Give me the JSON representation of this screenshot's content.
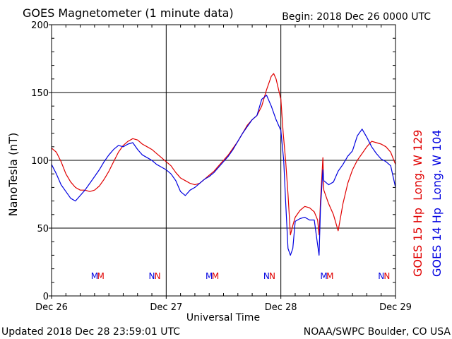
{
  "colors": {
    "red": "#e00000",
    "blue": "#0000e0",
    "axis": "#000000",
    "background": "#ffffff"
  },
  "header": {
    "title": "GOES Magnetometer (1 minute data)",
    "begin": "Begin:  2018 Dec 26 0000 UTC"
  },
  "footer": {
    "updated": "Updated 2018 Dec 28 23:59:01 UTC",
    "credit": "NOAA/SWPC Boulder, CO USA"
  },
  "chart_data": {
    "type": "line",
    "title": "GOES Magnetometer (1 minute data)",
    "xlabel": "Universal Time",
    "ylabel": "NanoTesla (nT)",
    "xlim": [
      0,
      72
    ],
    "x_unit": "hours since 2018 Dec 26 0000 UTC",
    "ylim": [
      0,
      200
    ],
    "yticks": [
      0,
      50,
      100,
      150,
      200
    ],
    "xticks": [
      {
        "value": 0,
        "label": "Dec 26"
      },
      {
        "value": 24,
        "label": "Dec 27"
      },
      {
        "value": 48,
        "label": "Dec 28"
      },
      {
        "value": 72,
        "label": "Dec 29"
      }
    ],
    "grid": true,
    "midnight_lines": [
      24,
      48
    ],
    "series": [
      {
        "name": "GOES 15 Hp  Long. W 129",
        "color": "#e00000",
        "points": [
          [
            0,
            109
          ],
          [
            1,
            106
          ],
          [
            2,
            99
          ],
          [
            3,
            90
          ],
          [
            4,
            84
          ],
          [
            5,
            80
          ],
          [
            6,
            78
          ],
          [
            7,
            78
          ],
          [
            8,
            77
          ],
          [
            9,
            78
          ],
          [
            10,
            81
          ],
          [
            11,
            86
          ],
          [
            12,
            92
          ],
          [
            13,
            99
          ],
          [
            14,
            106
          ],
          [
            15,
            111
          ],
          [
            16,
            114
          ],
          [
            17,
            116
          ],
          [
            18,
            115
          ],
          [
            19,
            112
          ],
          [
            20,
            110
          ],
          [
            21,
            108
          ],
          [
            22,
            105
          ],
          [
            23,
            102
          ],
          [
            24,
            99
          ],
          [
            25,
            96
          ],
          [
            26,
            91
          ],
          [
            27,
            87
          ],
          [
            28,
            85
          ],
          [
            29,
            83
          ],
          [
            30,
            82
          ],
          [
            31,
            83
          ],
          [
            32,
            86
          ],
          [
            33,
            89
          ],
          [
            34,
            92
          ],
          [
            35,
            96
          ],
          [
            36,
            100
          ],
          [
            37,
            104
          ],
          [
            38,
            109
          ],
          [
            39,
            114
          ],
          [
            40,
            120
          ],
          [
            41,
            126
          ],
          [
            42,
            130
          ],
          [
            43,
            133
          ],
          [
            44,
            140
          ],
          [
            45,
            152
          ],
          [
            46,
            162
          ],
          [
            46.5,
            164
          ],
          [
            47,
            160
          ],
          [
            48,
            145
          ],
          [
            48.5,
            120
          ],
          [
            49,
            100
          ],
          [
            49.5,
            75
          ],
          [
            50,
            45
          ],
          [
            50.5,
            52
          ],
          [
            51,
            58
          ],
          [
            52,
            63
          ],
          [
            53,
            66
          ],
          [
            54,
            65
          ],
          [
            55,
            62
          ],
          [
            55.7,
            56
          ],
          [
            56,
            45
          ],
          [
            56.3,
            70
          ],
          [
            56.8,
            102
          ],
          [
            57,
            78
          ],
          [
            58,
            68
          ],
          [
            59,
            60
          ],
          [
            60,
            48
          ],
          [
            61,
            68
          ],
          [
            62,
            83
          ],
          [
            63,
            93
          ],
          [
            64,
            100
          ],
          [
            65,
            105
          ],
          [
            66,
            110
          ],
          [
            67,
            114
          ],
          [
            68,
            113
          ],
          [
            69,
            112
          ],
          [
            70,
            110
          ],
          [
            71,
            106
          ],
          [
            72,
            97
          ]
        ]
      },
      {
        "name": "GOES 14 Hp  Long. W 104",
        "color": "#0000e0",
        "points": [
          [
            0,
            97
          ],
          [
            1,
            90
          ],
          [
            2,
            82
          ],
          [
            3,
            77
          ],
          [
            4,
            72
          ],
          [
            5,
            70
          ],
          [
            6,
            74
          ],
          [
            7,
            78
          ],
          [
            8,
            83
          ],
          [
            9,
            88
          ],
          [
            10,
            93
          ],
          [
            11,
            99
          ],
          [
            12,
            104
          ],
          [
            13,
            108
          ],
          [
            14,
            111
          ],
          [
            15,
            110
          ],
          [
            16,
            112
          ],
          [
            17,
            113
          ],
          [
            18,
            108
          ],
          [
            19,
            104
          ],
          [
            20,
            102
          ],
          [
            21,
            100
          ],
          [
            22,
            97
          ],
          [
            23,
            95
          ],
          [
            24,
            93
          ],
          [
            25,
            90
          ],
          [
            26,
            85
          ],
          [
            27,
            77
          ],
          [
            28,
            74
          ],
          [
            29,
            78
          ],
          [
            30,
            80
          ],
          [
            31,
            83
          ],
          [
            32,
            86
          ],
          [
            33,
            88
          ],
          [
            34,
            91
          ],
          [
            35,
            95
          ],
          [
            36,
            99
          ],
          [
            37,
            103
          ],
          [
            38,
            108
          ],
          [
            39,
            114
          ],
          [
            40,
            120
          ],
          [
            41,
            125
          ],
          [
            42,
            130
          ],
          [
            43,
            133
          ],
          [
            44,
            145
          ],
          [
            45,
            148
          ],
          [
            46,
            140
          ],
          [
            47,
            130
          ],
          [
            48,
            122
          ],
          [
            48.6,
            100
          ],
          [
            49,
            70
          ],
          [
            49.5,
            35
          ],
          [
            50,
            30
          ],
          [
            50.5,
            35
          ],
          [
            51,
            55
          ],
          [
            52,
            57
          ],
          [
            53,
            58
          ],
          [
            54,
            56
          ],
          [
            55,
            56
          ],
          [
            55.6,
            40
          ],
          [
            56,
            30
          ],
          [
            56.3,
            65
          ],
          [
            56.8,
            93
          ],
          [
            57,
            85
          ],
          [
            58,
            82
          ],
          [
            59,
            84
          ],
          [
            60,
            92
          ],
          [
            61,
            97
          ],
          [
            62,
            103
          ],
          [
            63,
            107
          ],
          [
            64,
            118
          ],
          [
            65,
            123
          ],
          [
            66,
            117
          ],
          [
            67,
            110
          ],
          [
            68,
            105
          ],
          [
            69,
            101
          ],
          [
            70,
            99
          ],
          [
            71,
            96
          ],
          [
            72,
            80
          ]
        ]
      }
    ],
    "markers": [
      {
        "x": 9,
        "label": "M",
        "color": "#0000e0"
      },
      {
        "x": 10.3,
        "label": "M",
        "color": "#e00000"
      },
      {
        "x": 21,
        "label": "N",
        "color": "#0000e0"
      },
      {
        "x": 22.2,
        "label": "N",
        "color": "#e00000"
      },
      {
        "x": 33,
        "label": "M",
        "color": "#0000e0"
      },
      {
        "x": 34.3,
        "label": "M",
        "color": "#e00000"
      },
      {
        "x": 45,
        "label": "N",
        "color": "#0000e0"
      },
      {
        "x": 46.2,
        "label": "N",
        "color": "#e00000"
      },
      {
        "x": 57,
        "label": "M",
        "color": "#0000e0"
      },
      {
        "x": 58.3,
        "label": "M",
        "color": "#e00000"
      },
      {
        "x": 69,
        "label": "N",
        "color": "#0000e0"
      },
      {
        "x": 70.2,
        "label": "N",
        "color": "#e00000"
      }
    ],
    "marker_level": 15
  }
}
